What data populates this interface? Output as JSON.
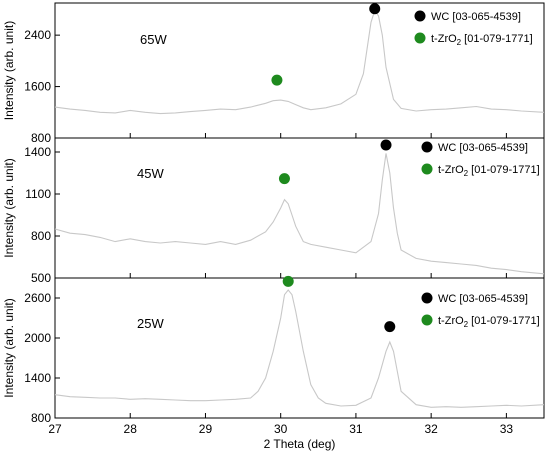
{
  "chart_data": {
    "type": "line",
    "xlabel": "2 Theta (deg)",
    "xlim": [
      27,
      33.5
    ],
    "xticks": [
      "27",
      "28",
      "29",
      "30",
      "31",
      "32",
      "33"
    ],
    "xtick_values": [
      27,
      28,
      29,
      30,
      31,
      32,
      33
    ],
    "line_color": "#c8c8c8",
    "panels": [
      {
        "label": "65W",
        "ylabel": "Intensity (arb. unit)",
        "ylim": [
          800,
          2900
        ],
        "yticks": [
          "800",
          "1600",
          "2400"
        ],
        "ytick_values": [
          800,
          1600,
          2400
        ],
        "series": {
          "x": [
            27.0,
            27.2,
            27.4,
            27.6,
            27.8,
            28.0,
            28.2,
            28.4,
            28.6,
            28.8,
            29.0,
            29.2,
            29.4,
            29.6,
            29.7,
            29.8,
            29.9,
            30.0,
            30.1,
            30.2,
            30.3,
            30.4,
            30.6,
            30.8,
            31.0,
            31.1,
            31.15,
            31.2,
            31.25,
            31.3,
            31.35,
            31.4,
            31.5,
            31.6,
            31.8,
            32.0,
            32.2,
            32.4,
            32.6,
            32.8,
            33.0,
            33.2,
            33.5
          ],
          "y": [
            1280,
            1250,
            1230,
            1200,
            1190,
            1230,
            1200,
            1180,
            1190,
            1210,
            1230,
            1250,
            1240,
            1280,
            1310,
            1340,
            1380,
            1390,
            1370,
            1320,
            1270,
            1240,
            1270,
            1330,
            1480,
            1800,
            2200,
            2600,
            2780,
            2700,
            2400,
            1900,
            1400,
            1260,
            1220,
            1240,
            1250,
            1270,
            1290,
            1250,
            1240,
            1220,
            1200
          ]
        },
        "markers": [
          {
            "phase": "WC",
            "x": 31.25,
            "y": 2810,
            "color": "#000000"
          },
          {
            "phase": "t-ZrO2",
            "x": 29.95,
            "y": 1700,
            "color": "#1e8a1e"
          }
        ],
        "legend": [
          {
            "text": "WC [03-065-4539]",
            "color": "#000000"
          },
          {
            "pre": "t-ZrO",
            "sub": "2",
            "post": " [01-079-1771]",
            "color": "#1e8a1e"
          }
        ]
      },
      {
        "label": "45W",
        "ylabel": "Intensity (arb. unit)",
        "ylim": [
          500,
          1500
        ],
        "yticks": [
          "500",
          "800",
          "1100",
          "1400"
        ],
        "ytick_values": [
          500,
          800,
          1100,
          1400
        ],
        "series": {
          "x": [
            27.0,
            27.2,
            27.4,
            27.6,
            27.8,
            28.0,
            28.2,
            28.4,
            28.6,
            28.8,
            29.0,
            29.2,
            29.4,
            29.6,
            29.8,
            29.9,
            30.0,
            30.05,
            30.1,
            30.15,
            30.2,
            30.3,
            30.4,
            30.6,
            30.8,
            31.0,
            31.2,
            31.3,
            31.35,
            31.4,
            31.45,
            31.5,
            31.55,
            31.6,
            31.8,
            32.0,
            32.2,
            32.4,
            32.6,
            32.8,
            33.0,
            33.2,
            33.5
          ],
          "y": [
            850,
            820,
            810,
            790,
            760,
            780,
            760,
            750,
            760,
            750,
            740,
            760,
            740,
            770,
            830,
            900,
            1000,
            1060,
            1030,
            950,
            870,
            760,
            740,
            720,
            700,
            680,
            760,
            960,
            1200,
            1390,
            1250,
            1000,
            820,
            700,
            640,
            620,
            610,
            600,
            590,
            570,
            560,
            545,
            530
          ]
        },
        "markers": [
          {
            "phase": "WC",
            "x": 31.4,
            "y": 1450,
            "color": "#000000"
          },
          {
            "phase": "t-ZrO2",
            "x": 30.05,
            "y": 1210,
            "color": "#1e8a1e"
          }
        ],
        "legend": [
          {
            "text": "WC [03-065-4539]",
            "color": "#000000"
          },
          {
            "pre": "t-ZrO",
            "sub": "2",
            "post": " [01-079-1771]",
            "color": "#1e8a1e"
          }
        ]
      },
      {
        "label": "25W",
        "ylabel": "Intensity (arb. unit)",
        "ylim": [
          800,
          2900
        ],
        "yticks": [
          "800",
          "1400",
          "2000",
          "2600"
        ],
        "ytick_values": [
          800,
          1400,
          2000,
          2600
        ],
        "series": {
          "x": [
            27.0,
            27.2,
            27.4,
            27.6,
            27.8,
            28.0,
            28.2,
            28.4,
            28.6,
            28.8,
            29.0,
            29.2,
            29.4,
            29.6,
            29.7,
            29.8,
            29.9,
            30.0,
            30.05,
            30.1,
            30.15,
            30.2,
            30.3,
            30.4,
            30.5,
            30.6,
            30.8,
            31.0,
            31.2,
            31.3,
            31.4,
            31.45,
            31.5,
            31.55,
            31.6,
            31.8,
            32.0,
            32.2,
            32.4,
            32.6,
            32.8,
            33.0,
            33.2,
            33.5
          ],
          "y": [
            1150,
            1120,
            1110,
            1100,
            1100,
            1080,
            1090,
            1080,
            1070,
            1060,
            1060,
            1070,
            1080,
            1100,
            1200,
            1400,
            1800,
            2300,
            2650,
            2720,
            2650,
            2400,
            1800,
            1300,
            1100,
            1020,
            980,
            990,
            1100,
            1400,
            1800,
            1940,
            1800,
            1500,
            1200,
            1000,
            960,
            970,
            960,
            970,
            980,
            990,
            980,
            1000
          ]
        },
        "markers": [
          {
            "phase": "WC",
            "x": 31.45,
            "y": 2170,
            "color": "#000000"
          },
          {
            "phase": "t-ZrO2",
            "x": 30.1,
            "y": 2850,
            "color": "#1e8a1e"
          }
        ],
        "legend": [
          {
            "text": "WC [03-065-4539]",
            "color": "#000000"
          },
          {
            "pre": "t-ZrO",
            "sub": "2",
            "post": " [01-079-1771]",
            "color": "#1e8a1e"
          }
        ]
      }
    ]
  }
}
